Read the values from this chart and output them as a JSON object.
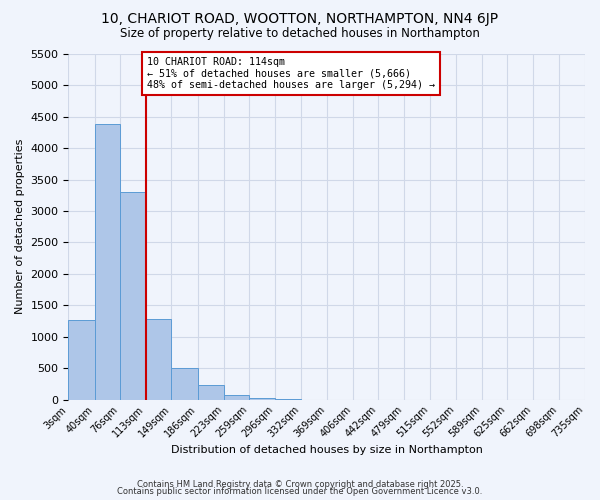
{
  "title": "10, CHARIOT ROAD, WOOTTON, NORTHAMPTON, NN4 6JP",
  "subtitle": "Size of property relative to detached houses in Northampton",
  "xlabel": "Distribution of detached houses by size in Northampton",
  "ylabel": "Number of detached properties",
  "bar_values": [
    1270,
    4380,
    3300,
    1280,
    500,
    230,
    80,
    20,
    5,
    0,
    0,
    0,
    0,
    0,
    0,
    0,
    0,
    0,
    0,
    0
  ],
  "bin_edges": [
    3,
    40,
    76,
    113,
    149,
    186,
    223,
    259,
    296,
    332,
    369,
    406,
    442,
    479,
    515,
    552,
    589,
    625,
    662,
    698,
    735
  ],
  "bin_labels": [
    "3sqm",
    "40sqm",
    "76sqm",
    "113sqm",
    "149sqm",
    "186sqm",
    "223sqm",
    "259sqm",
    "296sqm",
    "332sqm",
    "369sqm",
    "406sqm",
    "442sqm",
    "479sqm",
    "515sqm",
    "552sqm",
    "589sqm",
    "625sqm",
    "662sqm",
    "698sqm",
    "735sqm"
  ],
  "bar_color": "#aec6e8",
  "bar_edgecolor": "#5b9bd5",
  "grid_color": "#d0d8e8",
  "bg_color": "#f0f4fc",
  "vline_color": "#cc0000",
  "annotation_text": "10 CHARIOT ROAD: 114sqm\n← 51% of detached houses are smaller (5,666)\n48% of semi-detached houses are larger (5,294) →",
  "annotation_box_edgecolor": "#cc0000",
  "annotation_box_facecolor": "#ffffff",
  "ylim": [
    0,
    5500
  ],
  "yticks": [
    0,
    500,
    1000,
    1500,
    2000,
    2500,
    3000,
    3500,
    4000,
    4500,
    5000,
    5500
  ],
  "footnote1": "Contains HM Land Registry data © Crown copyright and database right 2025.",
  "footnote2": "Contains public sector information licensed under the Open Government Licence v3.0."
}
